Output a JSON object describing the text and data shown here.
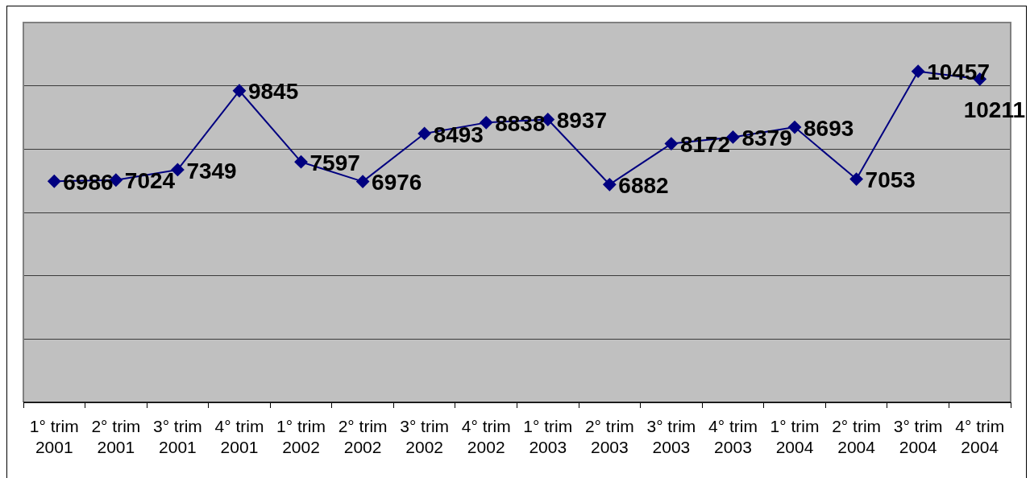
{
  "chart_data": {
    "type": "line",
    "categories": [
      "1° trim 2001",
      "2° trim 2001",
      "3° trim 2001",
      "4° trim 2001",
      "1° trim 2002",
      "2° trim 2002",
      "3° trim 2002",
      "4° trim 2002",
      "1° trim 2003",
      "2° trim 2003",
      "3° trim 2003",
      "4° trim 2003",
      "1° trim 2004",
      "2° trim 2004",
      "3° trim 2004",
      "4° trim 2004"
    ],
    "values": [
      6986,
      7024,
      7349,
      9845,
      7597,
      6976,
      8493,
      8838,
      8937,
      6882,
      8172,
      8379,
      8693,
      7053,
      10457,
      10211
    ],
    "color": "#000080",
    "marker": "diamond",
    "line_style": "solid",
    "ylim": [
      0,
      12000
    ],
    "yticks": [
      {
        "value": 0,
        "label": null
      },
      {
        "value": 2000,
        "label": null
      },
      {
        "value": 4000,
        "label": null
      },
      {
        "value": 6000,
        "label": null
      },
      {
        "value": 8000,
        "label": null
      },
      {
        "value": 10000,
        "label": null
      },
      {
        "value": 12000,
        "label": null
      }
    ],
    "grid": "y",
    "tick_labels": "x",
    "data_labels": true
  }
}
